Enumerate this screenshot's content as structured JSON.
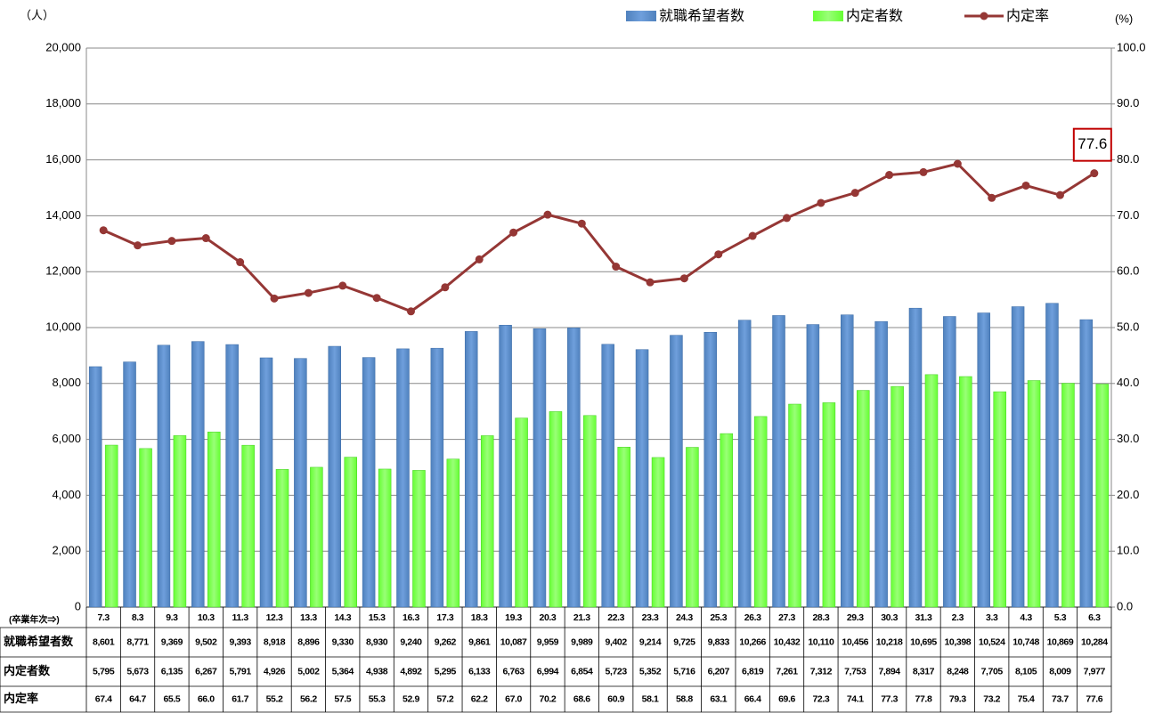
{
  "chart_data": {
    "type": "bar",
    "x_label": "(卒業年次⇒)",
    "y_label": "（人）",
    "y2_label": "(%)",
    "categories": [
      "7.3",
      "8.3",
      "9.3",
      "10.3",
      "11.3",
      "12.3",
      "13.3",
      "14.3",
      "15.3",
      "16.3",
      "17.3",
      "18.3",
      "19.3",
      "20.3",
      "21.3",
      "22.3",
      "23.3",
      "24.3",
      "25.3",
      "26.3",
      "27.3",
      "28.3",
      "29.3",
      "30.3",
      "31.3",
      "2.3",
      "3.3",
      "4.3",
      "5.3",
      "6.3"
    ],
    "series": [
      {
        "name": "就職希望者数",
        "type": "bar",
        "color": "#4f81bd",
        "values": [
          8601,
          8771,
          9369,
          9502,
          9393,
          8918,
          8896,
          9330,
          8930,
          9240,
          9262,
          9861,
          10087,
          9959,
          9989,
          9402,
          9214,
          9725,
          9833,
          10266,
          10432,
          10110,
          10456,
          10218,
          10695,
          10398,
          10524,
          10748,
          10869,
          10284
        ],
        "value_labels": [
          "8,601",
          "8,771",
          "9,369",
          "9,502",
          "9,393",
          "8,918",
          "8,896",
          "9,330",
          "8,930",
          "9,240",
          "9,262",
          "9,861",
          "10,087",
          "9,959",
          "9,989",
          "9,402",
          "9,214",
          "9,725",
          "9,833",
          "10,266",
          "10,432",
          "10,110",
          "10,456",
          "10,218",
          "10,695",
          "10,398",
          "10,524",
          "10,748",
          "10,869",
          "10,284"
        ]
      },
      {
        "name": "内定者数",
        "type": "bar",
        "color": "#66ff33",
        "values": [
          5795,
          5673,
          6135,
          6267,
          5791,
          4926,
          5002,
          5364,
          4938,
          4892,
          5295,
          6133,
          6763,
          6994,
          6854,
          5723,
          5352,
          5716,
          6207,
          6819,
          7261,
          7312,
          7753,
          7894,
          8317,
          8248,
          7705,
          8105,
          8009,
          7977
        ],
        "value_labels": [
          "5,795",
          "5,673",
          "6,135",
          "6,267",
          "5,791",
          "4,926",
          "5,002",
          "5,364",
          "4,938",
          "4,892",
          "5,295",
          "6,133",
          "6,763",
          "6,994",
          "6,854",
          "5,723",
          "5,352",
          "5,716",
          "6,207",
          "6,819",
          "7,261",
          "7,312",
          "7,753",
          "7,894",
          "8,317",
          "8,248",
          "7,705",
          "8,105",
          "8,009",
          "7,977"
        ]
      },
      {
        "name": "内定率",
        "type": "line",
        "axis": "y2",
        "color": "#953735",
        "values": [
          67.4,
          64.7,
          65.5,
          66.0,
          61.7,
          55.2,
          56.2,
          57.5,
          55.3,
          52.9,
          57.2,
          62.2,
          67.0,
          70.2,
          68.6,
          60.9,
          58.1,
          58.8,
          63.1,
          66.4,
          69.6,
          72.3,
          74.1,
          77.3,
          77.8,
          79.3,
          73.2,
          75.4,
          73.7,
          77.6
        ],
        "value_labels": [
          "67.4",
          "64.7",
          "65.5",
          "66.0",
          "61.7",
          "55.2",
          "56.2",
          "57.5",
          "55.3",
          "52.9",
          "57.2",
          "62.2",
          "67.0",
          "70.2",
          "68.6",
          "60.9",
          "58.1",
          "58.8",
          "63.1",
          "66.4",
          "69.6",
          "72.3",
          "74.1",
          "77.3",
          "77.8",
          "79.3",
          "73.2",
          "75.4",
          "73.7",
          "77.6"
        ]
      }
    ],
    "ylim": [
      0,
      20000
    ],
    "yticks": [
      0,
      {
        "value": 2000,
        "label": "2,000"
      },
      {
        "value": 4000,
        "label": "4,000"
      },
      {
        "value": 6000,
        "label": "6,000"
      },
      {
        "value": 8000,
        "label": "8,000"
      },
      {
        "value": 10000,
        "label": "10,000"
      },
      {
        "value": 12000,
        "label": "12,000"
      },
      {
        "value": 14000,
        "label": "14,000"
      },
      {
        "value": 16000,
        "label": "16,000"
      },
      {
        "value": 18000,
        "label": "18,000"
      },
      {
        "value": 20000,
        "label": "20,000"
      }
    ],
    "y2lim": [
      0,
      100
    ],
    "y2ticks": [
      {
        "value": 0,
        "label": "0.0"
      },
      {
        "value": 10,
        "label": "10.0"
      },
      {
        "value": 20,
        "label": "20.0"
      },
      {
        "value": 30,
        "label": "30.0"
      },
      {
        "value": 40,
        "label": "40.0"
      },
      {
        "value": 50,
        "label": "50.0"
      },
      {
        "value": 60,
        "label": "60.0"
      },
      {
        "value": 70,
        "label": "70.0"
      },
      {
        "value": 80,
        "label": "80.0"
      },
      {
        "value": 90,
        "label": "90.0"
      },
      {
        "value": 100,
        "label": "100.0"
      }
    ],
    "grid": true,
    "legend": "top-right"
  }
}
